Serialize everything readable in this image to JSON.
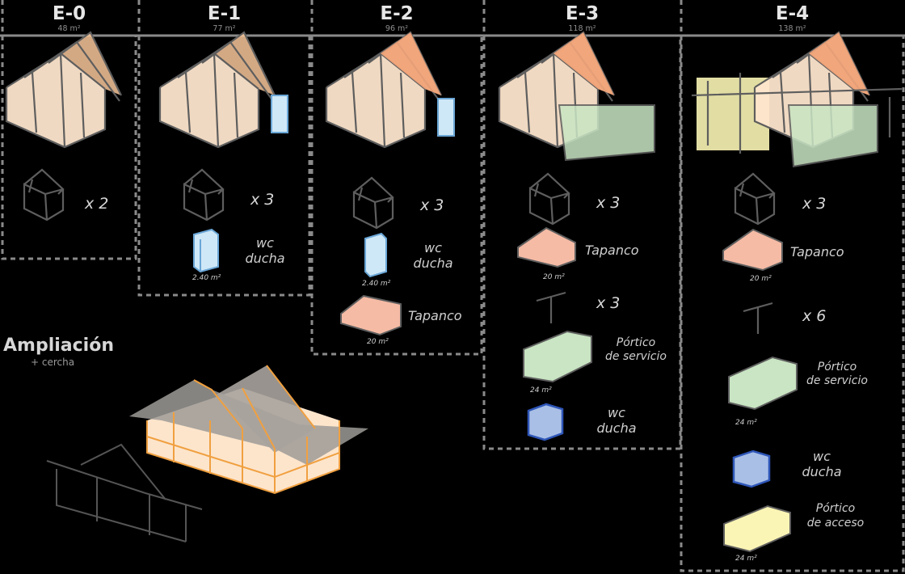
{
  "stages": [
    {
      "title": "E-0",
      "area": "48 m²"
    },
    {
      "title": "E-1",
      "area": "77 m²"
    },
    {
      "title": "E-2",
      "area": "96 m²"
    },
    {
      "title": "E-3",
      "area": "118 m²"
    },
    {
      "title": "E-4",
      "area": "138 m²"
    }
  ],
  "e0": {
    "module_count": "x 2"
  },
  "e1": {
    "module_count": "x 3",
    "wc_label": "wc",
    "ducha_label": "ducha",
    "wc_area": "2.40 m²"
  },
  "e2": {
    "module_count": "x 3",
    "wc_label": "wc",
    "ducha_label": "ducha",
    "wc_area": "2.40 m²",
    "tapanco_label": "Tapanco",
    "tapanco_area": "20 m²"
  },
  "e3": {
    "module_count": "x 3",
    "tapanco_label": "Tapanco",
    "tapanco_area": "20 m²",
    "truss_count": "x 3",
    "portico_servicio_l1": "Pórtico",
    "portico_servicio_l2": "de servicio",
    "portico_area": "24 m²",
    "wc_label": "wc",
    "ducha_label": "ducha"
  },
  "e4": {
    "module_count": "x 3",
    "tapanco_label": "Tapanco",
    "tapanco_area": "20 m²",
    "truss_count": "x 6",
    "portico_servicio_l1": "Pórtico",
    "portico_servicio_l2": "de servicio",
    "portico_area": "24 m²",
    "wc_label": "wc",
    "ducha_label": "ducha",
    "portico_acceso_l1": "Pórtico",
    "portico_acceso_l2": "de acceso",
    "acceso_area": "24 m²"
  },
  "ampliacion": {
    "title": "Ampliación",
    "subtitle": "+ cercha"
  },
  "colors": {
    "frame": "#5a5a5a",
    "body": "#fde7d0",
    "roof": "#f7b889",
    "tapanco": "#f6bba5",
    "wc": "#cfe8f7",
    "servicio": "#c9e5c3",
    "ducha": "#a9bfe6",
    "acceso": "#fbf5b5",
    "truss_orange": "#f0a040"
  }
}
